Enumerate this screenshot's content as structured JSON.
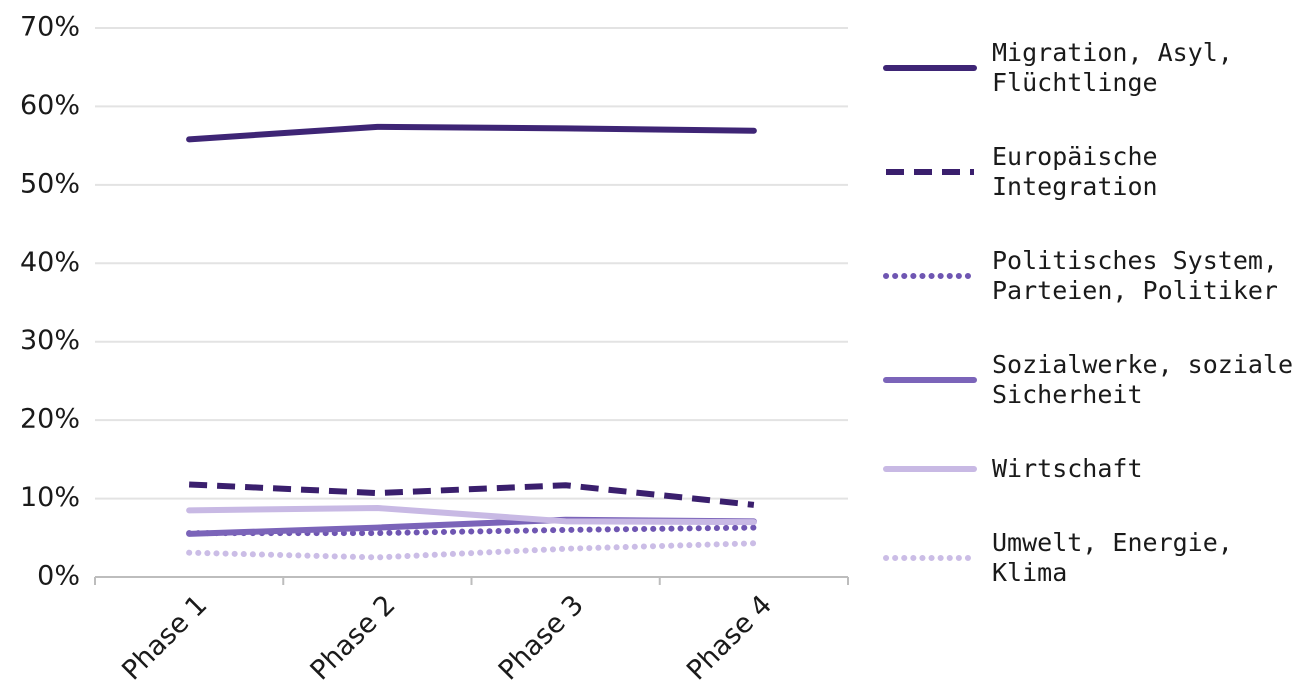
{
  "chart_data": {
    "type": "line",
    "categories": [
      "Phase 1",
      "Phase 2",
      "Phase 3",
      "Phase 4"
    ],
    "series": [
      {
        "name": "Migration, Asyl, Flüchtlinge",
        "color": "#3e2575",
        "dash": "solid",
        "values": [
          55.8,
          57.4,
          57.2,
          56.9
        ]
      },
      {
        "name": "Europäische Integration",
        "color": "#3a1f6d",
        "dash": "dashed",
        "values": [
          11.8,
          10.7,
          11.7,
          9.2
        ]
      },
      {
        "name": "Politisches System, Parteien, Politiker",
        "color": "#6f56b2",
        "dash": "dotted",
        "values": [
          5.6,
          5.6,
          6.0,
          6.3
        ]
      },
      {
        "name": "Sozialwerke, soziale Sicherheit",
        "color": "#7b64b9",
        "dash": "solid",
        "values": [
          5.5,
          6.3,
          7.3,
          7.1
        ]
      },
      {
        "name": "Wirtschaft",
        "color": "#c8b9e4",
        "dash": "solid",
        "values": [
          8.5,
          8.8,
          7.1,
          7.0
        ]
      },
      {
        "name": "Umwelt, Energie, Klima",
        "color": "#cbbde6",
        "dash": "dotted",
        "values": [
          3.1,
          2.5,
          3.6,
          4.3
        ]
      }
    ],
    "ylim": [
      0,
      70
    ],
    "yticks": [
      {
        "value": 0,
        "label": "0%"
      },
      {
        "value": 10,
        "label": "10%"
      },
      {
        "value": 20,
        "label": "20%"
      },
      {
        "value": 30,
        "label": "30%"
      },
      {
        "value": 40,
        "label": "40%"
      },
      {
        "value": 50,
        "label": "50%"
      },
      {
        "value": 60,
        "label": "60%"
      },
      {
        "value": 70,
        "label": "70%"
      }
    ],
    "grid": true
  }
}
